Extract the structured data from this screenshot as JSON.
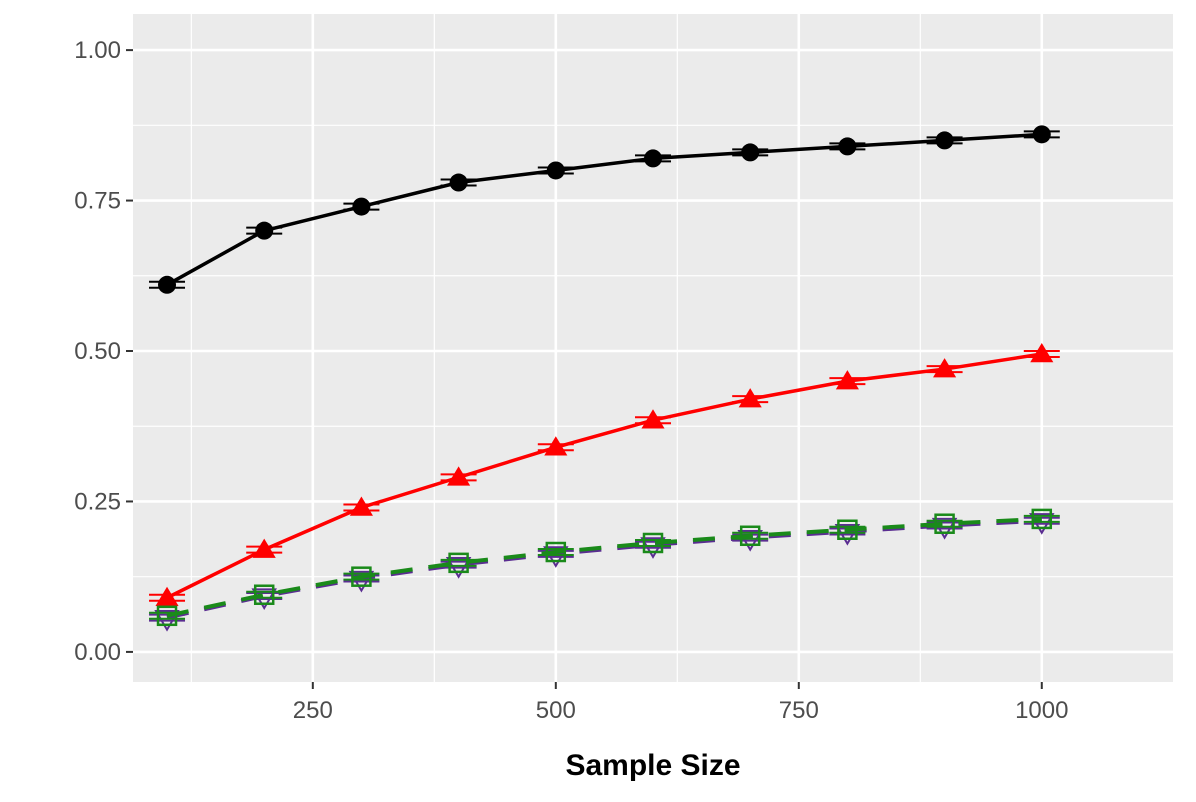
{
  "chart_data": {
    "type": "line",
    "title": "",
    "xlabel": "Sample Size",
    "ylabel": "",
    "xlim": [
      65,
      1135
    ],
    "ylim": [
      -0.05,
      1.06
    ],
    "x_ticks": [
      250,
      500,
      750,
      1000
    ],
    "x_tick_labels": [
      "250",
      "500",
      "750",
      "1000"
    ],
    "y_ticks": [
      0,
      0.25,
      0.5,
      0.75,
      1.0
    ],
    "y_tick_labels": [
      "0.00",
      "0.25",
      "0.50",
      "0.75",
      "1.00"
    ],
    "grid": true,
    "legend": "none",
    "x": [
      100,
      200,
      300,
      400,
      500,
      600,
      700,
      800,
      900,
      1000
    ],
    "series": [
      {
        "color": "#000000",
        "line_style": "solid",
        "marker": "circle",
        "values": [
          0.61,
          0.7,
          0.74,
          0.78,
          0.8,
          0.82,
          0.83,
          0.84,
          0.85,
          0.86
        ]
      },
      {
        "color": "#ff0000",
        "line_style": "solid",
        "marker": "triangle",
        "values": [
          0.09,
          0.17,
          0.24,
          0.29,
          0.34,
          0.385,
          0.42,
          0.45,
          0.47,
          0.495
        ]
      },
      {
        "color": "#5a2d91",
        "line_style": "dashed",
        "marker": "triangle-down",
        "values": [
          0.057,
          0.093,
          0.122,
          0.145,
          0.163,
          0.178,
          0.19,
          0.2,
          0.21,
          0.218
        ]
      },
      {
        "color": "#1a8a1a",
        "line_style": "dashed",
        "marker": "square",
        "values": [
          0.06,
          0.095,
          0.125,
          0.148,
          0.166,
          0.181,
          0.193,
          0.203,
          0.213,
          0.221
        ]
      }
    ]
  }
}
